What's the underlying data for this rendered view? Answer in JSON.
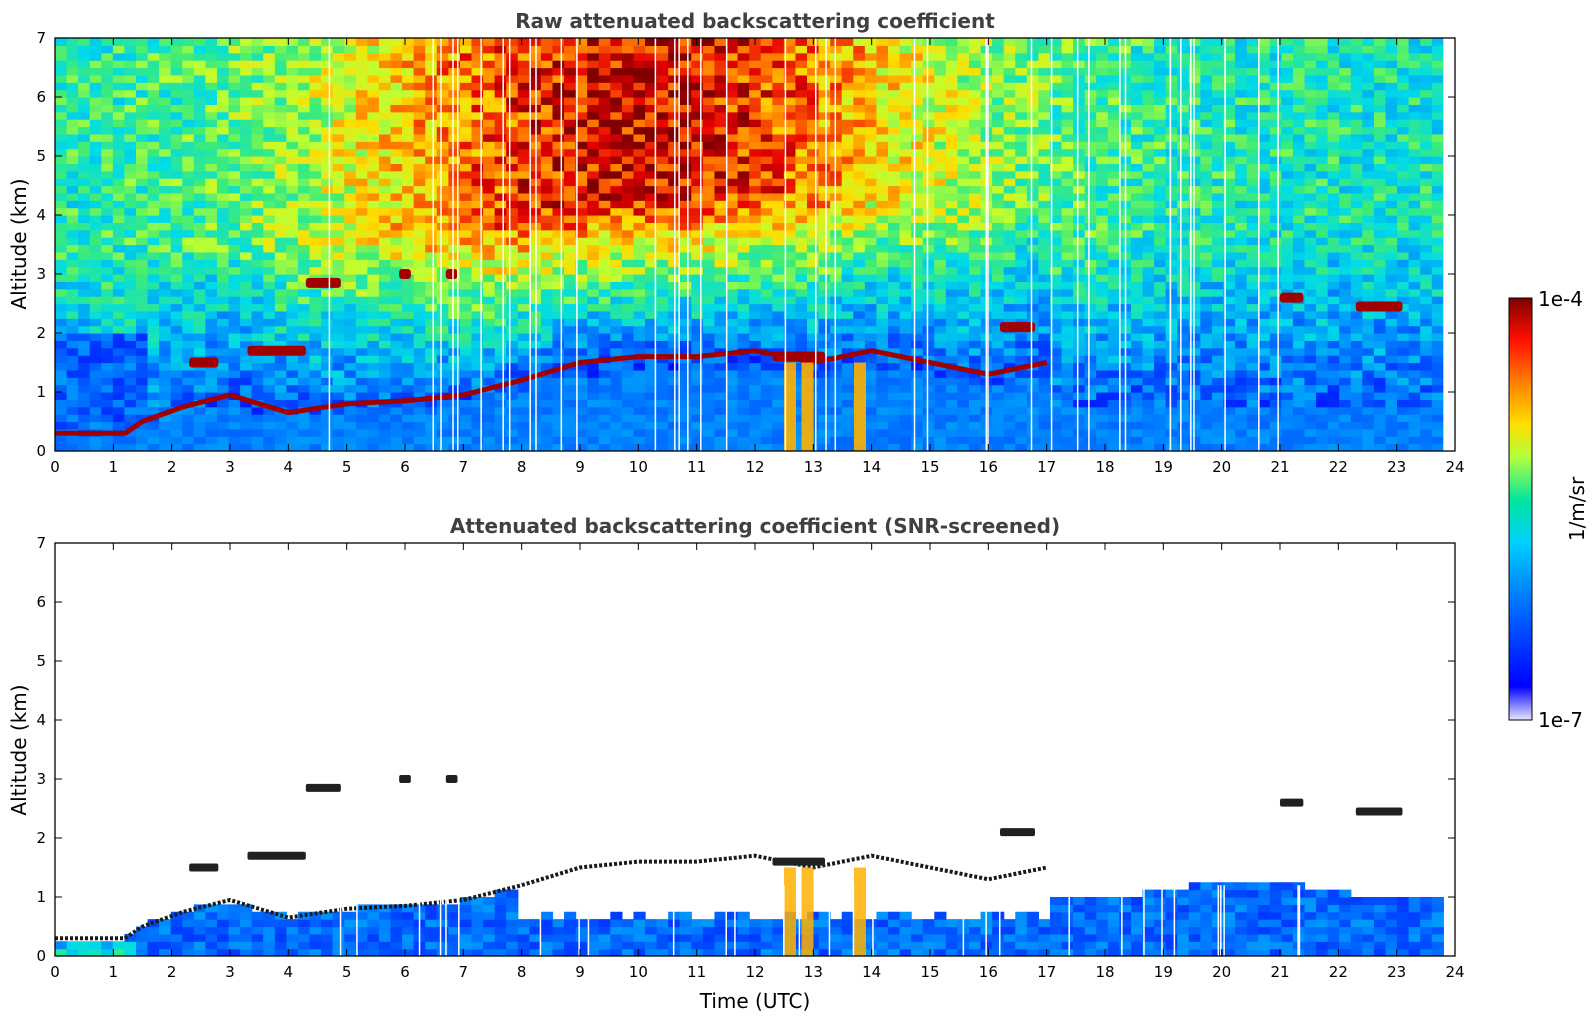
{
  "chart_data": [
    {
      "type": "heatmap",
      "title": "Raw attenuated backscattering coefficient",
      "xlabel": "",
      "ylabel": "Altitude (km)",
      "xlim": [
        0,
        24
      ],
      "ylim": [
        0,
        7
      ],
      "xticks": [
        "0",
        "1",
        "2",
        "3",
        "4",
        "5",
        "6",
        "7",
        "8",
        "9",
        "10",
        "11",
        "12",
        "13",
        "14",
        "15",
        "16",
        "17",
        "18",
        "19",
        "20",
        "21",
        "22",
        "23",
        "24"
      ],
      "yticks": [
        "0",
        "1",
        "2",
        "3",
        "4",
        "5",
        "6",
        "7"
      ],
      "data_extent_hours": [
        0,
        23.8
      ],
      "boundary_layer_top_km": [
        [
          0,
          0.3
        ],
        [
          1.2,
          0.3
        ],
        [
          1.5,
          0.5
        ],
        [
          2.2,
          0.75
        ],
        [
          3,
          0.95
        ],
        [
          4,
          0.65
        ],
        [
          5,
          0.8
        ],
        [
          6,
          0.85
        ],
        [
          7,
          0.95
        ],
        [
          8,
          1.2
        ],
        [
          9,
          1.5
        ],
        [
          10,
          1.6
        ],
        [
          11,
          1.6
        ],
        [
          12,
          1.7
        ],
        [
          13,
          1.5
        ],
        [
          14,
          1.7
        ],
        [
          15,
          1.5
        ],
        [
          16,
          1.3
        ],
        [
          17,
          1.5
        ]
      ],
      "cloud_layers": [
        {
          "x": [
            2.3,
            2.8
          ],
          "alt_km": 1.5
        },
        {
          "x": [
            3.3,
            4.3
          ],
          "alt_km": 1.7
        },
        {
          "x": [
            4.3,
            4.9
          ],
          "alt_km": 2.85
        },
        {
          "x": [
            5.9,
            6.1
          ],
          "alt_km": 3.0
        },
        {
          "x": [
            6.7,
            6.9
          ],
          "alt_km": 3.0
        },
        {
          "x": [
            12.3,
            13.2
          ],
          "alt_km": 1.6
        },
        {
          "x": [
            16.2,
            16.8
          ],
          "alt_km": 2.1
        },
        {
          "x": [
            21.0,
            21.4
          ],
          "alt_km": 2.6
        },
        {
          "x": [
            22.3,
            23.1
          ],
          "alt_km": 2.45
        }
      ],
      "precipitation_streaks_hours": [
        12.6,
        12.9,
        13.8
      ]
    },
    {
      "type": "heatmap",
      "title": "Attenuated backscattering coefficient (SNR-screened)",
      "xlabel": "Time (UTC)",
      "ylabel": "Altitude (km)",
      "xlim": [
        0,
        24
      ],
      "ylim": [
        0,
        7
      ],
      "xticks": [
        "0",
        "1",
        "2",
        "3",
        "4",
        "5",
        "6",
        "7",
        "8",
        "9",
        "10",
        "11",
        "12",
        "13",
        "14",
        "15",
        "16",
        "17",
        "18",
        "19",
        "20",
        "21",
        "22",
        "23",
        "24"
      ],
      "yticks": [
        "0",
        "1",
        "2",
        "3",
        "4",
        "5",
        "6",
        "7"
      ],
      "data_extent_hours": [
        0,
        23.8
      ]
    }
  ],
  "colorbar": {
    "label": "1/m/sr",
    "max_label": "1e-4",
    "min_label": "1e-7",
    "scale": "log",
    "range": [
      1e-07,
      0.0001
    ],
    "colormap": "jet",
    "colors": [
      "#e6e6fa",
      "#0000ff",
      "#00aaff",
      "#00e5b0",
      "#c8ff3c",
      "#ffd700",
      "#ff7f00",
      "#ff0000",
      "#800000"
    ]
  }
}
